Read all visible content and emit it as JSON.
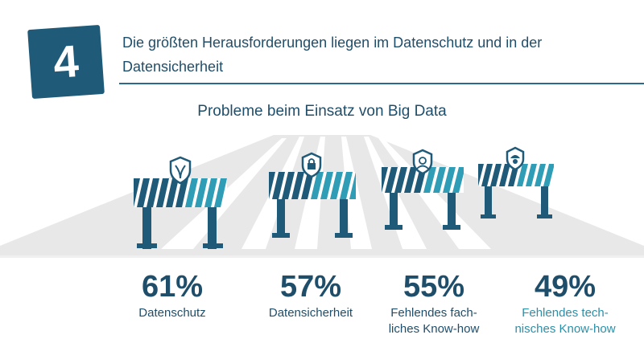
{
  "badge": {
    "number": "4"
  },
  "headline": {
    "line1": "Die größten Herausforderungen liegen im Datenschutz und in der",
    "line2": "Datensicherheit"
  },
  "subtitle": "Probleme beim Einsatz von Big Data",
  "colors": {
    "dark": "#1f5a78",
    "teal": "#2e9db5",
    "road": "#e6e6e6",
    "text": "#1f4e6b"
  },
  "items": [
    {
      "percent": "61%",
      "label1": "Datenschutz",
      "label2": "",
      "icon": "shield-hands-icon"
    },
    {
      "percent": "57%",
      "label1": "Datensicherheit",
      "label2": "",
      "icon": "shield-lock-icon"
    },
    {
      "percent": "55%",
      "label1": "Fehlendes fach-",
      "label2": "liches Know-how",
      "icon": "shield-person-icon"
    },
    {
      "percent": "49%",
      "label1": "Fehlendes tech-",
      "label2": "nisches Know-how",
      "icon": "shield-worker-icon"
    }
  ]
}
